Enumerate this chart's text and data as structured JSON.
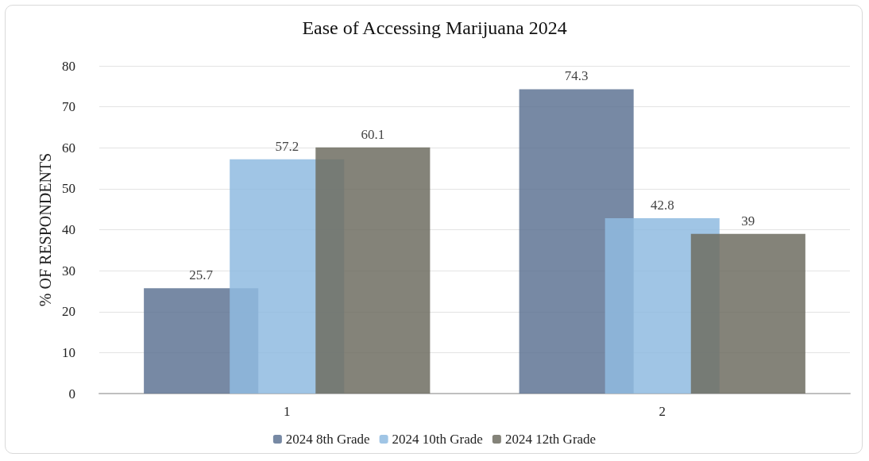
{
  "chart_data": {
    "type": "bar",
    "title": "Ease of Accessing Marijuana 2024",
    "ylabel": "% OF RESPONDENTS",
    "categories": [
      "1",
      "2"
    ],
    "series": [
      {
        "name": "2024 8th Grade",
        "color": "#5f7494",
        "values": [
          25.7,
          74.3
        ]
      },
      {
        "name": "2024 10th Grade",
        "color": "#8fbbe0",
        "values": [
          57.2,
          42.8
        ]
      },
      {
        "name": "2024 12th Grade",
        "color": "#6f6d62",
        "values": [
          60.1,
          39
        ]
      }
    ],
    "ylim": [
      0,
      80
    ],
    "yticks": [
      0,
      10,
      20,
      30,
      40,
      50,
      60,
      70,
      80
    ],
    "grid": "y",
    "legend": "bottom",
    "data_labels": true
  }
}
